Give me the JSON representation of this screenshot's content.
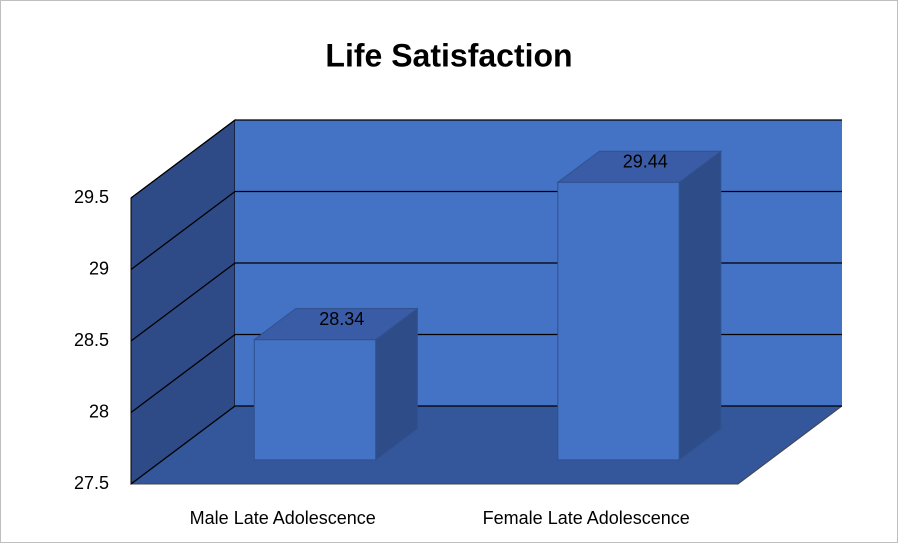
{
  "chart_data": {
    "type": "bar3d",
    "title": "Life Satisfaction",
    "categories": [
      "Male Late Adolescence",
      "Female Late Adolescence"
    ],
    "values": [
      28.34,
      29.44
    ],
    "color": "#4472c4",
    "ylim": [
      27.5,
      29.5
    ],
    "yticks": [
      27.5,
      28,
      28.5,
      29,
      29.5
    ],
    "grid": true
  }
}
